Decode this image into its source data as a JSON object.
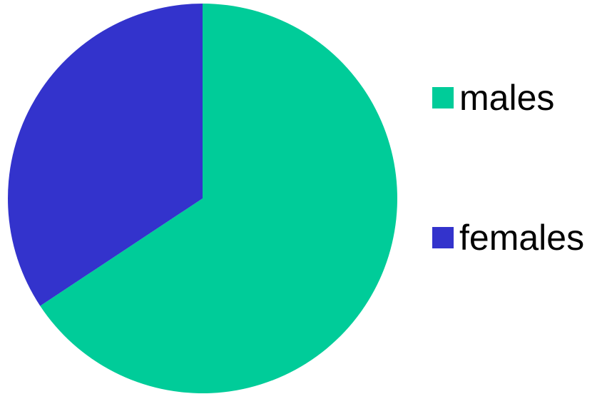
{
  "chart_data": {
    "type": "pie",
    "title": "",
    "start_angle_deg": 0,
    "direction": "clockwise",
    "slices": [
      {
        "label": "males",
        "value": 65.7,
        "color": "#00CC99"
      },
      {
        "label": "females",
        "value": 34.3,
        "color": "#3333CC"
      }
    ],
    "legend": {
      "position": "right",
      "entries": [
        "males",
        "females"
      ]
    }
  }
}
